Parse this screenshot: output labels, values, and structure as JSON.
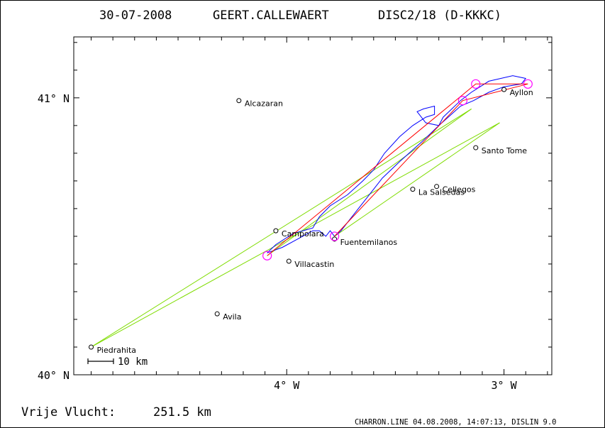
{
  "header": {
    "date": "30-07-2008",
    "pilot": "GEERT.CALLEWAERT",
    "class": "DISC2/18 (D-KKKC)"
  },
  "footer": {
    "distance_label": "Vrije Vlucht:",
    "distance_value": "251.5 km",
    "credit": "CHARRON.LINE 04.08.2008, 14:07:13, DISLIN 9.0"
  },
  "scale_label": "10 km",
  "colors": {
    "track": "#0000ff",
    "route": "#ff0000",
    "legs": "#7fdc00",
    "turnpoints": "#ff00ff",
    "frame": "#000000"
  },
  "chart_data": {
    "type": "map",
    "x_unit": "deg W longitude",
    "y_unit": "deg N latitude",
    "xlim": [
      4.98,
      2.78
    ],
    "ylim": [
      40.0,
      41.22
    ],
    "x_ticks": [
      {
        "value": 4.0,
        "label": "4° W"
      },
      {
        "value": 3.0,
        "label": "3° W"
      }
    ],
    "y_ticks": [
      {
        "value": 41.0,
        "label": "41° N"
      },
      {
        "value": 40.0,
        "label": "40° N"
      }
    ],
    "towns": [
      {
        "name": "Alcazaran",
        "lon": 4.22,
        "lat": 40.99
      },
      {
        "name": "Ayllon",
        "lon": 3.0,
        "lat": 41.03
      },
      {
        "name": "Santo Tome",
        "lon": 3.13,
        "lat": 40.82
      },
      {
        "name": "Cellegos",
        "lon": 3.31,
        "lat": 40.68
      },
      {
        "name": "La Salsedas",
        "lon": 3.42,
        "lat": 40.67
      },
      {
        "name": "Campolara",
        "lon": 4.05,
        "lat": 40.52
      },
      {
        "name": "Fuentemilanos",
        "lon": 3.78,
        "lat": 40.49
      },
      {
        "name": "Villacastin",
        "lon": 3.99,
        "lat": 40.41
      },
      {
        "name": "Avila",
        "lon": 4.32,
        "lat": 40.22
      },
      {
        "name": "Piedrahita",
        "lon": 4.9,
        "lat": 40.1
      }
    ],
    "route": [
      {
        "lon": 4.09,
        "lat": 40.43
      },
      {
        "lon": 3.13,
        "lat": 41.05
      },
      {
        "lon": 2.89,
        "lat": 41.05
      },
      {
        "lon": 3.19,
        "lat": 40.99
      },
      {
        "lon": 3.78,
        "lat": 40.5
      }
    ],
    "turnpoints": [
      {
        "lon": 4.09,
        "lat": 40.43
      },
      {
        "lon": 3.13,
        "lat": 41.05
      },
      {
        "lon": 2.89,
        "lat": 41.05
      },
      {
        "lon": 3.19,
        "lat": 40.99
      },
      {
        "lon": 3.78,
        "lat": 40.5
      }
    ],
    "legs": [
      [
        {
          "lon": 4.9,
          "lat": 40.1
        },
        {
          "lon": 3.15,
          "lat": 40.96
        }
      ],
      [
        {
          "lon": 4.9,
          "lat": 40.1
        },
        {
          "lon": 3.02,
          "lat": 40.91
        }
      ],
      [
        {
          "lon": 4.09,
          "lat": 40.43
        },
        {
          "lon": 3.15,
          "lat": 40.96
        }
      ],
      [
        {
          "lon": 3.78,
          "lat": 40.5
        },
        {
          "lon": 3.02,
          "lat": 40.91
        }
      ]
    ],
    "track": [
      {
        "lon": 3.78,
        "lat": 40.5
      },
      {
        "lon": 3.8,
        "lat": 40.52
      },
      {
        "lon": 3.82,
        "lat": 40.5
      },
      {
        "lon": 3.85,
        "lat": 40.52
      },
      {
        "lon": 3.88,
        "lat": 40.52
      },
      {
        "lon": 3.95,
        "lat": 40.49
      },
      {
        "lon": 4.02,
        "lat": 40.46
      },
      {
        "lon": 4.09,
        "lat": 40.44
      },
      {
        "lon": 4.05,
        "lat": 40.47
      },
      {
        "lon": 3.97,
        "lat": 40.51
      },
      {
        "lon": 3.88,
        "lat": 40.53
      },
      {
        "lon": 3.85,
        "lat": 40.57
      },
      {
        "lon": 3.8,
        "lat": 40.61
      },
      {
        "lon": 3.72,
        "lat": 40.65
      },
      {
        "lon": 3.65,
        "lat": 40.7
      },
      {
        "lon": 3.6,
        "lat": 40.74
      },
      {
        "lon": 3.55,
        "lat": 40.8
      },
      {
        "lon": 3.48,
        "lat": 40.86
      },
      {
        "lon": 3.42,
        "lat": 40.9
      },
      {
        "lon": 3.36,
        "lat": 40.93
      },
      {
        "lon": 3.32,
        "lat": 40.94
      },
      {
        "lon": 3.32,
        "lat": 40.97
      },
      {
        "lon": 3.37,
        "lat": 40.96
      },
      {
        "lon": 3.4,
        "lat": 40.95
      },
      {
        "lon": 3.36,
        "lat": 40.91
      },
      {
        "lon": 3.3,
        "lat": 40.9
      },
      {
        "lon": 3.28,
        "lat": 40.93
      },
      {
        "lon": 3.24,
        "lat": 40.96
      },
      {
        "lon": 3.2,
        "lat": 40.99
      },
      {
        "lon": 3.15,
        "lat": 41.02
      },
      {
        "lon": 3.07,
        "lat": 41.06
      },
      {
        "lon": 2.96,
        "lat": 41.08
      },
      {
        "lon": 2.9,
        "lat": 41.07
      },
      {
        "lon": 2.92,
        "lat": 41.05
      },
      {
        "lon": 3.0,
        "lat": 41.04
      },
      {
        "lon": 3.07,
        "lat": 41.02
      },
      {
        "lon": 3.14,
        "lat": 40.99
      },
      {
        "lon": 3.2,
        "lat": 40.97
      },
      {
        "lon": 3.3,
        "lat": 40.9
      },
      {
        "lon": 3.38,
        "lat": 40.84
      },
      {
        "lon": 3.48,
        "lat": 40.77
      },
      {
        "lon": 3.56,
        "lat": 40.71
      },
      {
        "lon": 3.63,
        "lat": 40.64
      },
      {
        "lon": 3.7,
        "lat": 40.57
      },
      {
        "lon": 3.75,
        "lat": 40.52
      },
      {
        "lon": 3.78,
        "lat": 40.5
      }
    ]
  }
}
